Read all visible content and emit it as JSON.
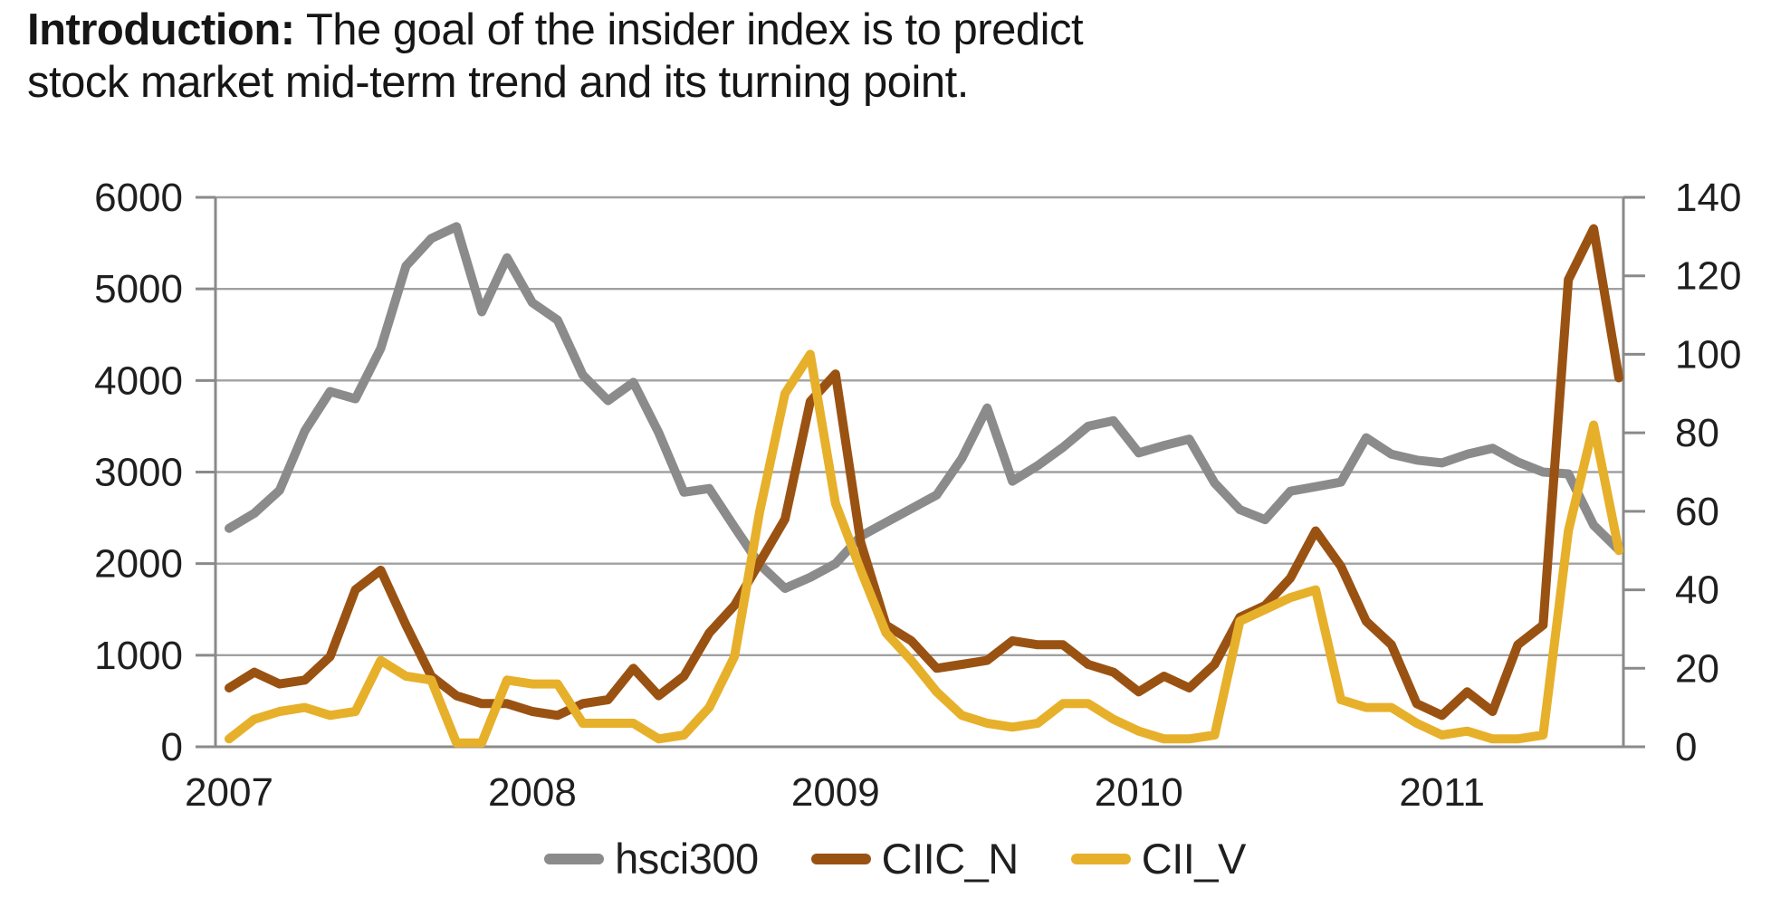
{
  "title": {
    "line1_bold": "Introduction:",
    "line1_rest": " The goal of the insider index is to predict",
    "line2": "stock market mid-term trend and its turning point."
  },
  "colors": {
    "hsci300": "#8b8b8b",
    "ciic_n": "#9a5212",
    "cii_v": "#e7b02b",
    "gridline": "#a0a0a0",
    "axis": "#8a8a8a",
    "label": "#1f1f1f"
  },
  "legend": {
    "items": [
      {
        "label": "hsci300",
        "color": "#8b8b8b"
      },
      {
        "label": "CIIC_N",
        "color": "#9a5212"
      },
      {
        "label": "CII_V",
        "color": "#e7b02b"
      }
    ]
  },
  "chart_data": {
    "type": "line",
    "title": "",
    "xlabel": "",
    "ylabel_left": "",
    "ylabel_right": "",
    "grid": "horizontal-only",
    "legend_position": "bottom-center",
    "x_tick_labels": [
      "2007",
      "2008",
      "2009",
      "2010",
      "2011"
    ],
    "x_tick_month_index": [
      0,
      12,
      24,
      36,
      48
    ],
    "left_axis": {
      "min": 0,
      "max": 6000,
      "ticks": [
        0,
        1000,
        2000,
        3000,
        4000,
        5000,
        6000
      ]
    },
    "right_axis": {
      "min": 0,
      "max": 140,
      "ticks": [
        0,
        20,
        40,
        60,
        80,
        100,
        120,
        140
      ]
    },
    "categories": [
      "2007-01",
      "2007-02",
      "2007-03",
      "2007-04",
      "2007-05",
      "2007-06",
      "2007-07",
      "2007-08",
      "2007-09",
      "2007-10",
      "2007-11",
      "2007-12",
      "2008-01",
      "2008-02",
      "2008-03",
      "2008-04",
      "2008-05",
      "2008-06",
      "2008-07",
      "2008-08",
      "2008-09",
      "2008-10",
      "2008-11",
      "2008-12",
      "2009-01",
      "2009-02",
      "2009-03",
      "2009-04",
      "2009-05",
      "2009-06",
      "2009-07",
      "2009-08",
      "2009-09",
      "2009-10",
      "2009-11",
      "2009-12",
      "2010-01",
      "2010-02",
      "2010-03",
      "2010-04",
      "2010-05",
      "2010-06",
      "2010-07",
      "2010-08",
      "2010-09",
      "2010-10",
      "2010-11",
      "2010-12",
      "2011-01",
      "2011-02",
      "2011-03",
      "2011-04",
      "2011-05",
      "2011-06",
      "2011-07",
      "2011-08"
    ],
    "series": [
      {
        "name": "hsci300",
        "axis": "left",
        "color": "#8b8b8b",
        "values": [
          2385,
          2550,
          2800,
          3450,
          3880,
          3800,
          4350,
          5250,
          5550,
          5680,
          4750,
          5340,
          4850,
          4660,
          4060,
          3780,
          3980,
          3430,
          2780,
          2820,
          2400,
          1990,
          1730,
          1850,
          2000,
          2300,
          2450,
          2600,
          2750,
          3150,
          3700,
          2900,
          3070,
          3270,
          3500,
          3560,
          3210,
          3290,
          3360,
          2880,
          2590,
          2480,
          2790,
          2840,
          2890,
          3375,
          3195,
          3130,
          3100,
          3195,
          3260,
          3110,
          3000,
          2980,
          2420,
          2150
        ]
      },
      {
        "name": "CIIC_N",
        "axis": "right",
        "color": "#9a5212",
        "values": [
          15,
          19,
          16,
          17,
          23,
          40,
          45,
          31,
          18,
          13,
          11,
          11,
          9,
          8,
          11,
          12,
          20,
          13,
          18,
          29,
          36,
          47,
          58,
          88,
          95,
          52,
          31,
          27,
          20,
          21,
          22,
          27,
          26,
          26,
          21,
          19,
          14,
          18,
          15,
          21,
          33,
          36,
          43,
          55,
          46,
          32,
          26,
          11,
          8,
          14,
          9,
          26,
          31,
          119,
          132,
          94
        ]
      },
      {
        "name": "CII_V",
        "axis": "right",
        "color": "#e7b02b",
        "values": [
          2,
          7,
          9,
          10,
          8,
          9,
          22,
          18,
          17,
          1,
          1,
          17,
          16,
          16,
          6,
          6,
          6,
          2,
          3,
          10,
          23,
          60,
          90,
          100,
          62,
          45,
          29,
          22,
          14,
          8,
          6,
          5,
          6,
          11,
          11,
          7,
          4,
          2,
          2,
          3,
          32,
          35,
          38,
          40,
          12,
          10,
          10,
          6,
          3,
          4,
          2,
          2,
          3,
          55,
          82,
          50
        ]
      }
    ]
  }
}
